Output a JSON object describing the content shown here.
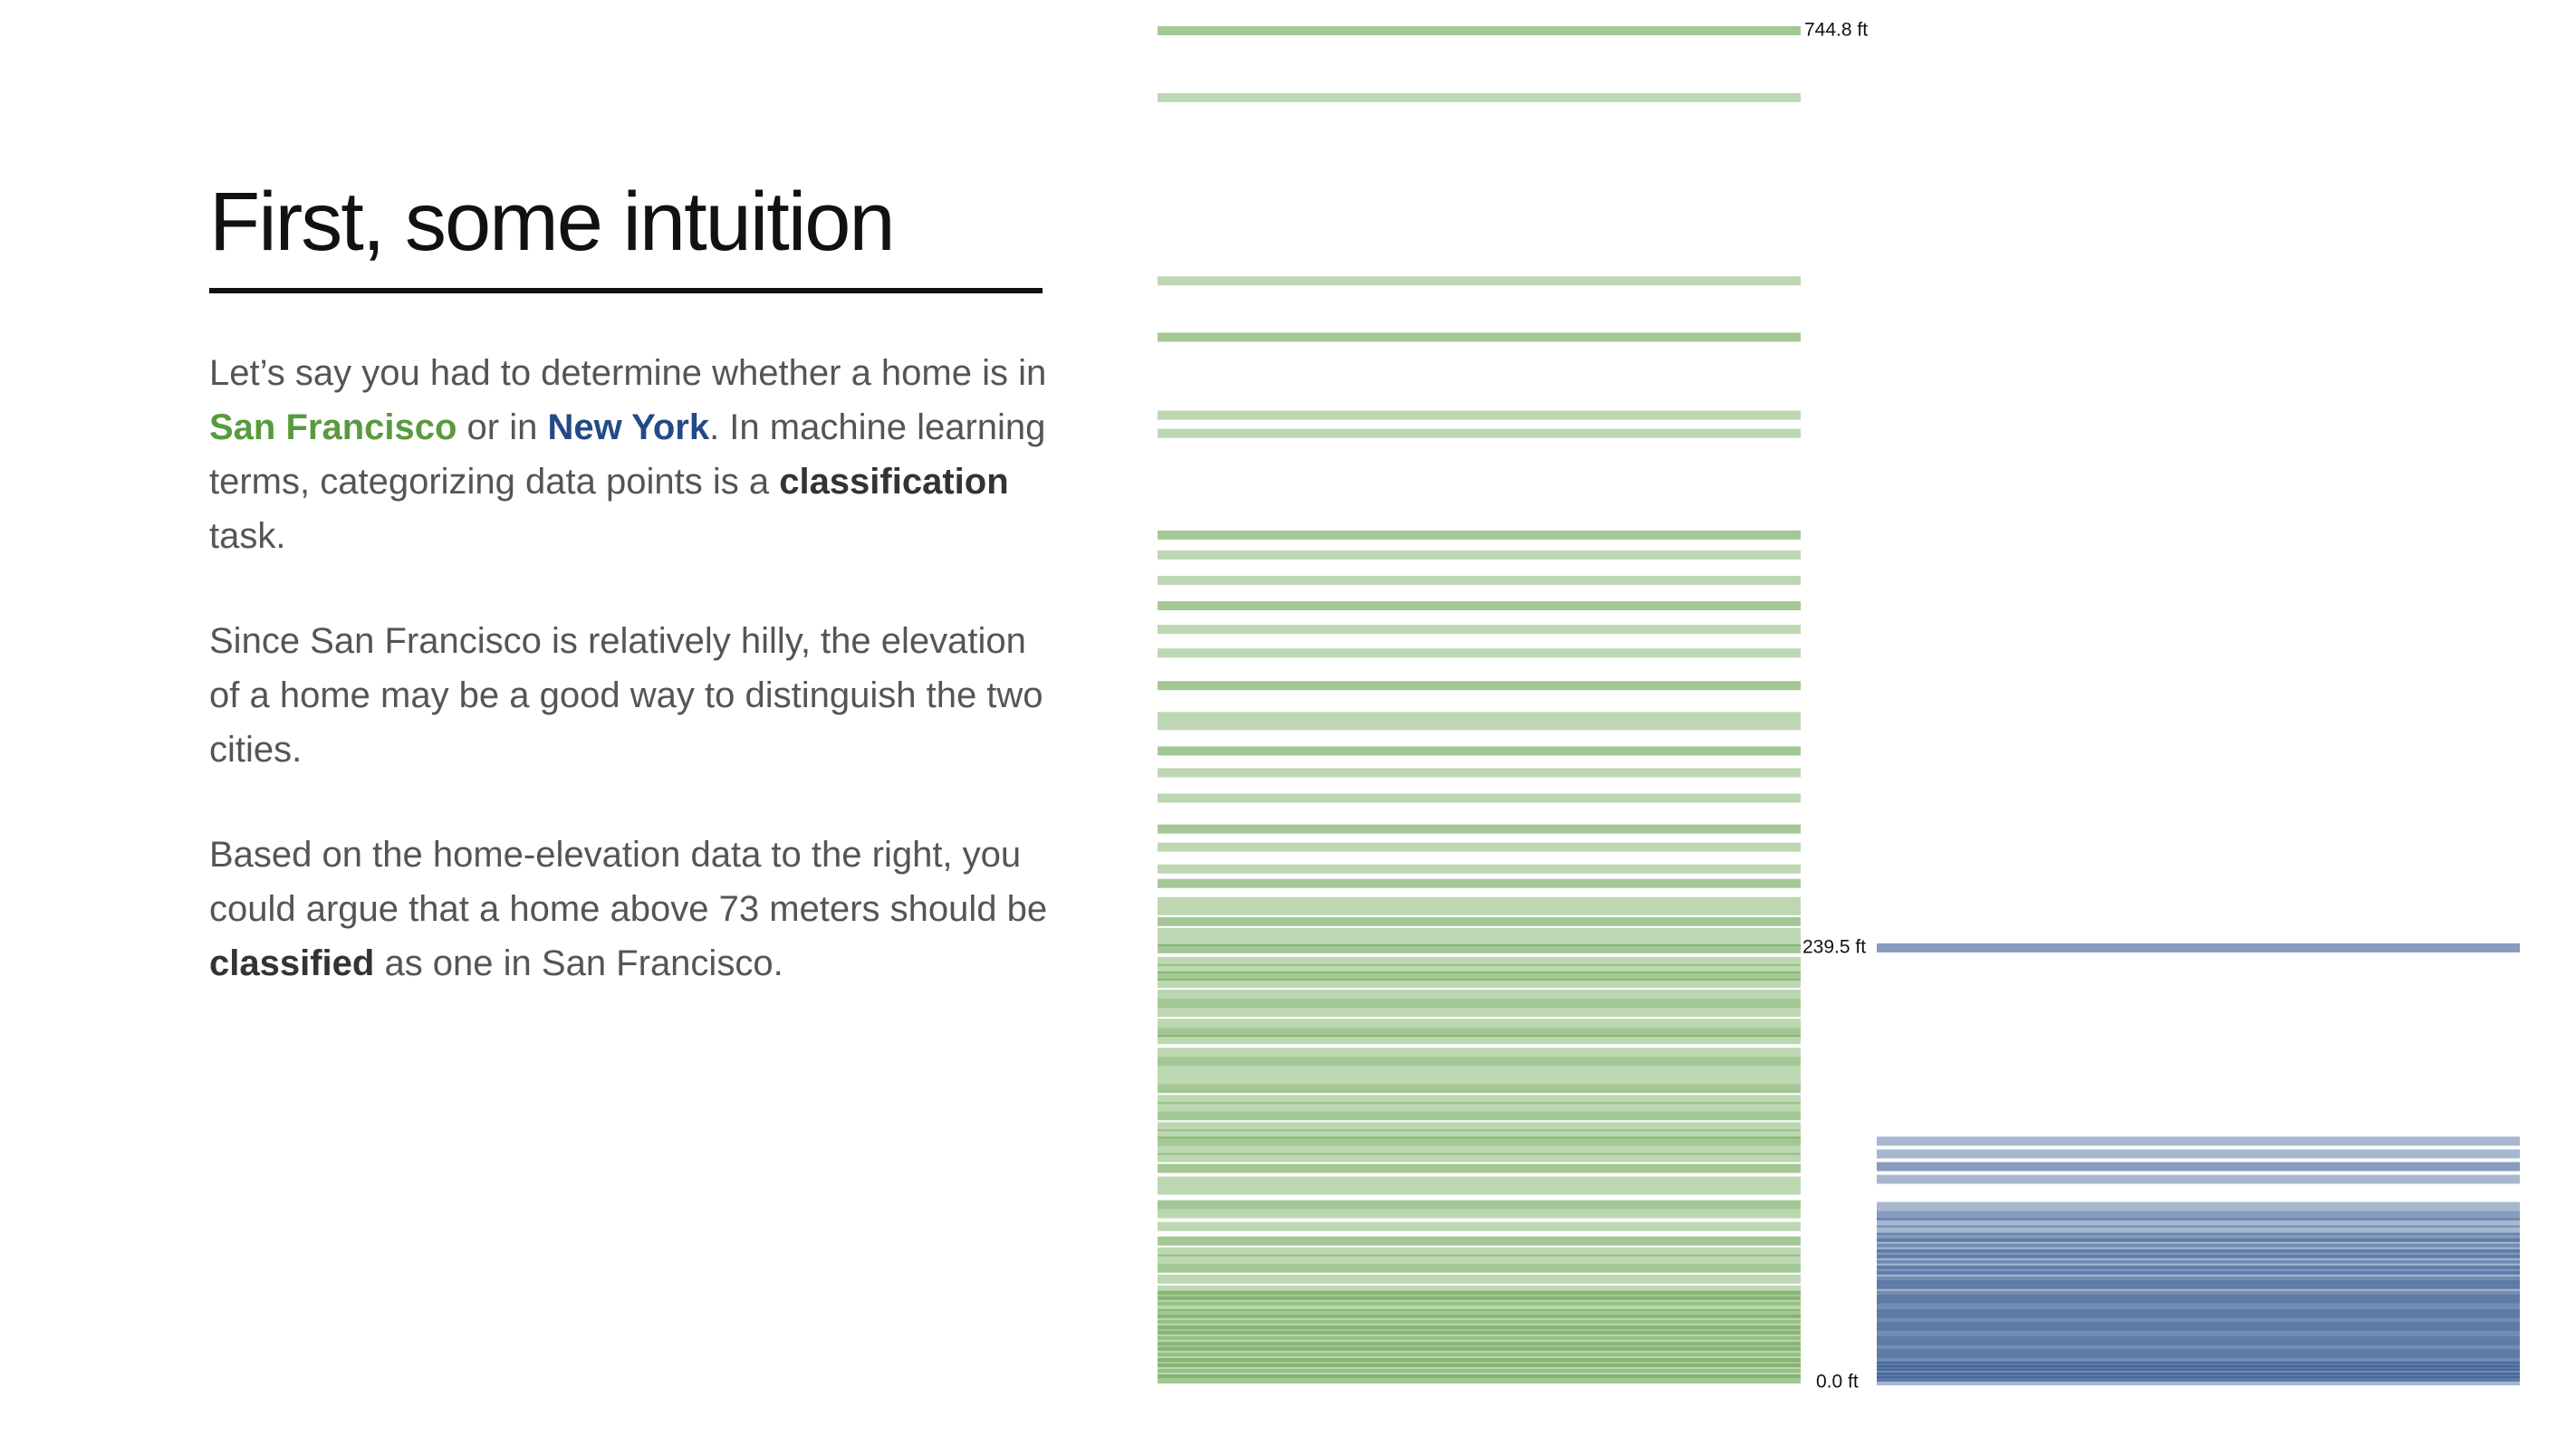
{
  "title": "First, some intuition",
  "paragraph1": {
    "before": "Let’s say you had to determine whether a home is in ",
    "sf": "San Francisco",
    "mid": " or in ",
    "ny": "New York",
    "after1": ". In machine learning terms, categorizing data points is a ",
    "bold": "classification",
    "after2": " task."
  },
  "paragraph2": "Since San Francisco is relatively hilly, the elevation of a home may be a good way to distinguish the two cities.",
  "paragraph3": {
    "before": "Based on the home-elevation data to the right, you could argue that a home above 73 meters should be ",
    "bold": "classified",
    "after": " as one in San Francisco."
  },
  "colors": {
    "san_francisco": "#5a9a3e",
    "new_york": "#234a88",
    "text": "#555555"
  },
  "chart_data": {
    "type": "strip",
    "value_unit": "ft",
    "ylim": [
      0,
      744.8
    ],
    "axis_labels": [
      "744.8 ft",
      "239.5 ft",
      "0.0 ft"
    ],
    "series": [
      {
        "name": "San Francisco",
        "color": "#5a9a3e",
        "max_label": "744.8 ft",
        "values": [
          744.8,
          708,
          607,
          576,
          533,
          523,
          467,
          456,
          442,
          428,
          415,
          402,
          384,
          367,
          362,
          348,
          336,
          322,
          305,
          295,
          283,
          275,
          265,
          260,
          254,
          248,
          243,
          239,
          232,
          228,
          224,
          220,
          214,
          209,
          204,
          198,
          193,
          189,
          182,
          177,
          172,
          167,
          162,
          156,
          152,
          147,
          141,
          137,
          133,
          128,
          124,
          118,
          111,
          106,
          98,
          93,
          86,
          78,
          72,
          68,
          63,
          57,
          51,
          48,
          45,
          42,
          38,
          35,
          32,
          29,
          26,
          23,
          20,
          17,
          14,
          11,
          8,
          5,
          2
        ]
      },
      {
        "name": "New York",
        "color": "#234a88",
        "max_label": "239.5 ft",
        "values": [
          239.5,
          133,
          126,
          119,
          112,
          97,
          92,
          88,
          84,
          80,
          77,
          74,
          71,
          68,
          65,
          62,
          59,
          56,
          54,
          51,
          48,
          46,
          43,
          41,
          38,
          36,
          33,
          31,
          28,
          26,
          23,
          21,
          18,
          16,
          13,
          11,
          9,
          7,
          5,
          3,
          1
        ]
      }
    ]
  }
}
